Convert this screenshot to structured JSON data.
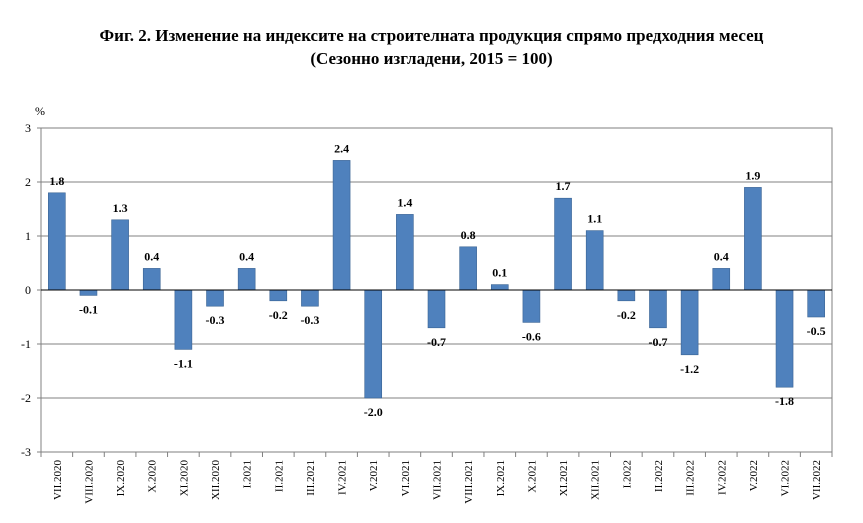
{
  "title": "Фиг. 2. Изменение на индексите на строителната продукция спрямо предходния месец",
  "subtitle": "(Сезонно изгладени, 2015 = 100)",
  "chart_data": {
    "type": "bar",
    "ylabel": "%",
    "ylim": [
      -3,
      3
    ],
    "yticks": [
      -3,
      -2,
      -1,
      0,
      1,
      2,
      3
    ],
    "grid": true,
    "bar_color": "#4f81bd",
    "categories": [
      "VII.2020",
      "VIII.2020",
      "IX.2020",
      "X.2020",
      "XI.2020",
      "XII.2020",
      "I.2021",
      "II.2021",
      "III.2021",
      "IV.2021",
      "V.2021",
      "VI.2021",
      "VII.2021",
      "VIII.2021",
      "IX.2021",
      "X.2021",
      "XI.2021",
      "XII.2021",
      "I.2022",
      "II.2022",
      "III.2022",
      "IV.2022",
      "V.2022",
      "VI.2022",
      "VII.2022"
    ],
    "values": [
      1.8,
      -0.1,
      1.3,
      0.4,
      -1.1,
      -0.3,
      0.4,
      -0.2,
      -0.3,
      2.4,
      -2.0,
      1.4,
      -0.7,
      0.8,
      0.1,
      -0.6,
      1.7,
      1.1,
      -0.2,
      -0.7,
      -1.2,
      0.4,
      1.9,
      -1.8,
      -0.5
    ],
    "labels": [
      "1.8",
      "-0.1",
      "1.3",
      "0.4",
      "-1.1",
      "-0.3",
      "0.4",
      "-0.2",
      "-0.3",
      "2.4",
      "-2.0",
      "1.4",
      "-0.7",
      "0.8",
      "0.1",
      "-0.6",
      "1.7",
      "1.1",
      "-0.2",
      "-0.7",
      "-1.2",
      "0.4",
      "1.9",
      "-1.8",
      "-0.5"
    ]
  }
}
